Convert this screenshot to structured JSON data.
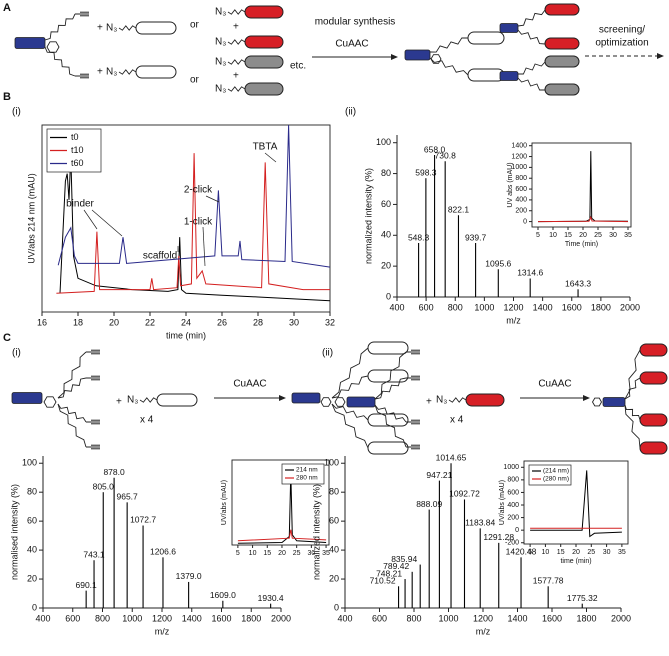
{
  "figure": {
    "panels": [
      "A",
      "B",
      "C"
    ],
    "subpanels": [
      "(i)",
      "(ii)"
    ],
    "scheme_a": {
      "plus": "+",
      "azide": "N₃",
      "or": "or",
      "etc": "etc.",
      "arrow_top": "modular synthesis",
      "arrow_bottom": "CuAAC",
      "screening": "screening/",
      "optimization": "optimization"
    },
    "scheme_c": {
      "plus": "+",
      "azide": "N₃",
      "times": "x 4",
      "reagent": "CuAAC"
    }
  },
  "chart_data": [
    {
      "type": "line",
      "xlabel": "time (min)",
      "ylabel": "UV/abs 214 nm (mAU)",
      "xlim": [
        16,
        32
      ],
      "xticks": [
        16,
        18,
        20,
        22,
        24,
        26,
        28,
        30,
        32
      ],
      "ylim": [
        0,
        100
      ],
      "legend": "upper left",
      "annotations": [
        "binder",
        "scaffold",
        "1-click",
        "2-click",
        "TBTA"
      ],
      "series": [
        {
          "name": "t0",
          "color": "#000000",
          "x": [
            17.0,
            17.3,
            17.4,
            17.5,
            17.6,
            17.75,
            18,
            19,
            21,
            23,
            23.55,
            23.65,
            23.75,
            24,
            26,
            28,
            30,
            32
          ],
          "values": [
            10,
            70,
            74,
            60,
            84,
            30,
            18,
            14,
            12,
            11,
            12,
            40,
            12,
            10,
            9,
            8,
            7,
            6
          ]
        },
        {
          "name": "t10",
          "color": "#d42020",
          "x": [
            16.8,
            18.9,
            19.05,
            19.2,
            22,
            22.1,
            22.2,
            23.5,
            23.6,
            23.7,
            24.3,
            24.45,
            24.6,
            24.9,
            25.1,
            28.2,
            28.4,
            28.6,
            30.5,
            32
          ],
          "values": [
            10,
            11,
            43,
            12,
            12,
            18,
            12,
            13,
            30,
            14,
            15,
            85,
            18,
            22,
            15,
            13,
            80,
            15,
            12,
            12
          ]
        },
        {
          "name": "t60",
          "color": "#2a2a8a",
          "x": [
            16.9,
            17.3,
            17.6,
            17.8,
            18,
            20.3,
            20.5,
            20.7,
            25.6,
            25.8,
            26,
            26.9,
            27.0,
            27.1,
            29.5,
            29.7,
            29.9,
            32
          ],
          "values": [
            25,
            40,
            45,
            30,
            26,
            26,
            40,
            26,
            30,
            65,
            30,
            30,
            38,
            28,
            27,
            100,
            27,
            24
          ]
        }
      ]
    },
    {
      "type": "stem",
      "xlabel": "m/z",
      "ylabel": "normalized intensity (%)",
      "xlim": [
        400,
        2000
      ],
      "xticks": [
        400,
        600,
        800,
        1000,
        1200,
        1400,
        1600,
        1800,
        2000
      ],
      "ylim": [
        0,
        105
      ],
      "yticks": [
        0,
        20,
        40,
        60,
        80,
        100
      ],
      "color": "#000000",
      "x": [
        548.3,
        598.3,
        658.0,
        730.8,
        822.1,
        939.7,
        1095.6,
        1314.6,
        1643.3
      ],
      "x_labels": [
        "548.3",
        "598.3",
        "658.0",
        "730.8",
        "822.1",
        "939.7",
        "1095.6",
        "1314.6",
        "1643.3"
      ],
      "values": [
        35,
        77,
        92,
        88,
        53,
        35,
        18,
        12,
        5
      ]
    },
    {
      "type": "line",
      "xlabel": "Time (min)",
      "ylabel": "UV abs (mAU)",
      "xlim": [
        3,
        36
      ],
      "xticks": [
        5,
        10,
        15,
        20,
        25,
        30,
        35
      ],
      "ylim": [
        -100,
        1450
      ],
      "yticks": [
        0,
        200,
        400,
        600,
        800,
        1000,
        1200,
        1400
      ],
      "series": [
        {
          "color": "#000000",
          "x": [
            5,
            21,
            22.3,
            22.6,
            22.9,
            24,
            35
          ],
          "values": [
            0,
            5,
            40,
            1300,
            60,
            10,
            5
          ]
        },
        {
          "color": "#d42020",
          "x": [
            5,
            22,
            22.6,
            23,
            35
          ],
          "values": [
            0,
            5,
            80,
            10,
            0
          ]
        }
      ]
    },
    {
      "type": "stem",
      "xlabel": "m/z",
      "ylabel": "normalised intensity (%)",
      "xlim": [
        400,
        2000
      ],
      "xticks": [
        400,
        600,
        800,
        1000,
        1200,
        1400,
        1600,
        1800,
        2000
      ],
      "ylim": [
        0,
        105
      ],
      "yticks": [
        0,
        20,
        40,
        60,
        80,
        100
      ],
      "color": "#000000",
      "x": [
        690.1,
        743.1,
        805.0,
        878.0,
        965.7,
        1072.7,
        1206.6,
        1379.0,
        1609.0,
        1930.4
      ],
      "x_labels": [
        "690.1",
        "743.1",
        "805.0",
        "878.0",
        "965.7",
        "1072.7",
        "1206.6",
        "1379.0",
        "1609.0",
        "1930.4"
      ],
      "values": [
        12,
        33,
        80,
        90,
        73,
        57,
        35,
        18,
        5,
        3
      ]
    },
    {
      "type": "line",
      "ylabel": "UV/abs (mAU)",
      "xlim": [
        3,
        36
      ],
      "xticks": [
        5,
        10,
        15,
        20,
        25,
        30,
        35
      ],
      "ylim": [
        0,
        100
      ],
      "legend": "upper right",
      "series": [
        {
          "name": "214 nm",
          "color": "#000000",
          "x": [
            5,
            20,
            22.5,
            23,
            23.5,
            25,
            35
          ],
          "values": [
            2,
            3,
            10,
            85,
            12,
            5,
            3
          ]
        },
        {
          "name": "280 nm",
          "color": "#d42020",
          "x": [
            5,
            22.5,
            23,
            23.5,
            35
          ],
          "values": [
            5,
            8,
            18,
            8,
            6
          ]
        }
      ]
    },
    {
      "type": "stem",
      "xlabel": "m/z",
      "ylabel": "normalized intensity (%)",
      "xlim": [
        400,
        2000
      ],
      "xticks": [
        400,
        600,
        800,
        1000,
        1200,
        1400,
        1600,
        1800,
        2000
      ],
      "ylim": [
        0,
        105
      ],
      "yticks": [
        0,
        20,
        40,
        60,
        80,
        100
      ],
      "color": "#000000",
      "x": [
        710.52,
        748.21,
        789.42,
        835.94,
        888.09,
        947.21,
        1014.65,
        1092.72,
        1183.84,
        1291.28,
        1420.48,
        1577.78,
        1775.32
      ],
      "x_labels": [
        "710.52",
        "748.21",
        "789.42",
        "835.94",
        "888.09",
        "947.21",
        "1014.65",
        "1092.72",
        "1183.84",
        "1291.28",
        "1420.48",
        "1577.78",
        "1775.32"
      ],
      "values": [
        15,
        20,
        25,
        30,
        68,
        88,
        100,
        75,
        55,
        45,
        35,
        15,
        3
      ]
    },
    {
      "type": "line",
      "xlabel": "time (min)",
      "ylabel": "UV/abs (mAU)",
      "xlim": [
        3,
        37
      ],
      "xticks": [
        5,
        10,
        15,
        20,
        25,
        30,
        35
      ],
      "ylim": [
        -220,
        1100
      ],
      "yticks": [
        -200,
        0,
        200,
        400,
        600,
        800,
        1000
      ],
      "legend": "upper left",
      "series": [
        {
          "name": "(214 nm)",
          "color": "#000000",
          "x": [
            5,
            22,
            23.5,
            24.5,
            26,
            35
          ],
          "values": [
            0,
            0,
            950,
            -100,
            -50,
            -30
          ]
        },
        {
          "name": "(280 nm)",
          "color": "#d42020",
          "x": [
            5,
            35
          ],
          "values": [
            30,
            30
          ]
        }
      ]
    }
  ]
}
